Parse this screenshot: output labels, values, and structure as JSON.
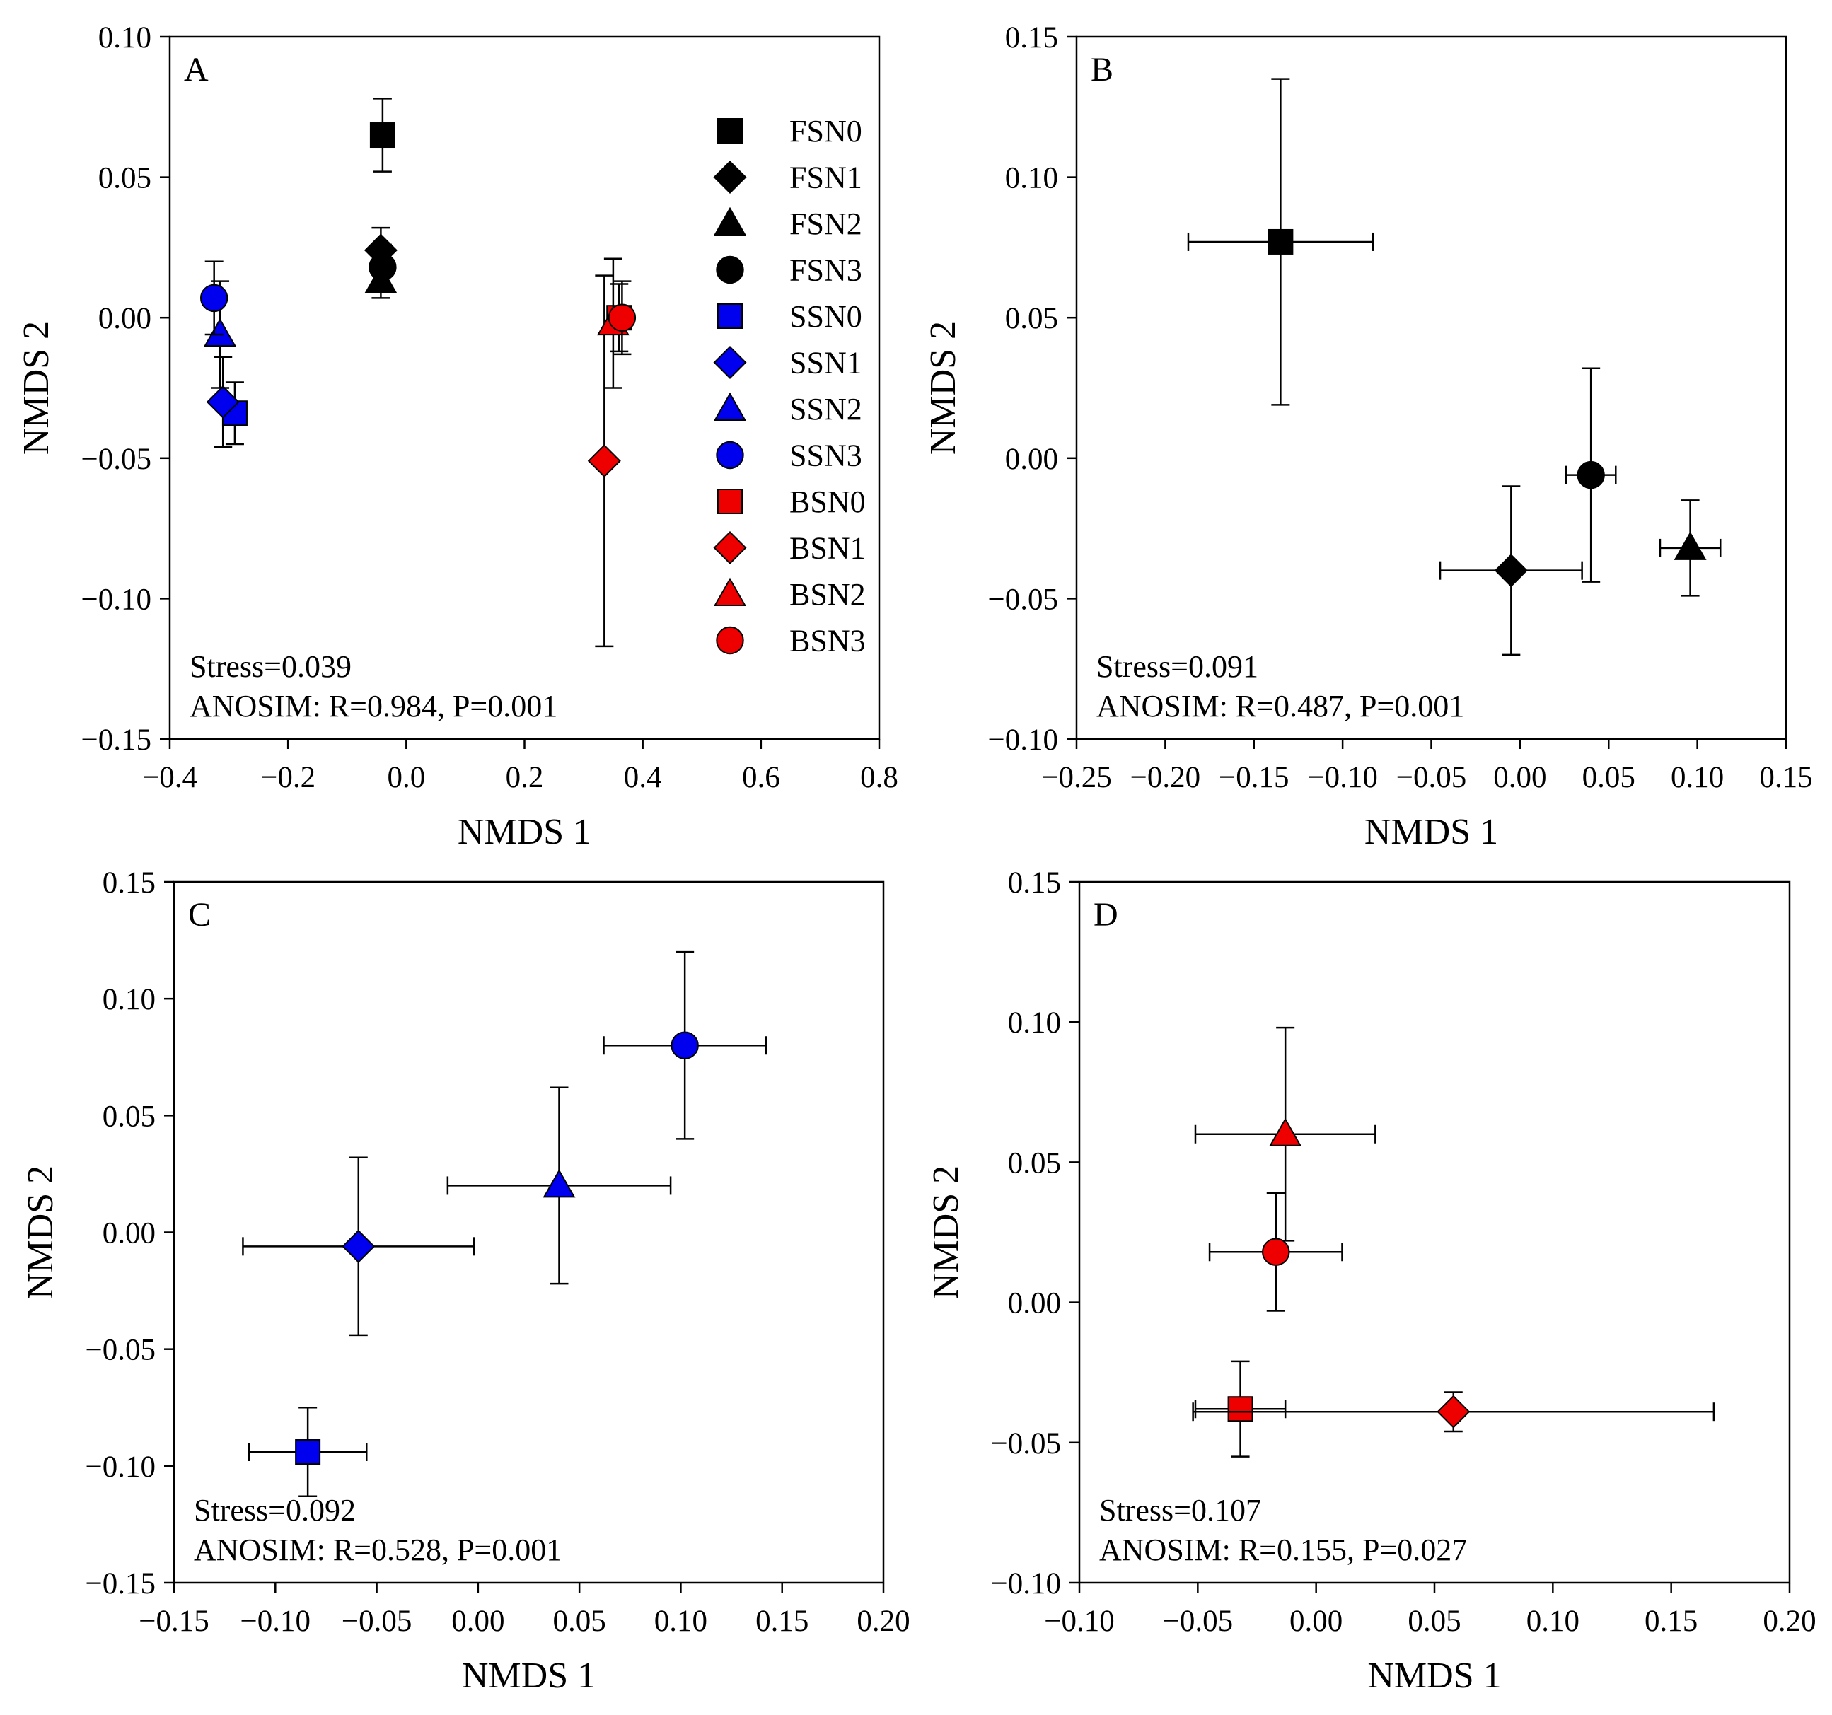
{
  "chart_data": [
    {
      "type": "scatter",
      "panel": "A",
      "xlabel": "NMDS 1",
      "ylabel": "NMDS 2",
      "xlim": [
        -0.4,
        0.8
      ],
      "ylim": [
        -0.15,
        0.1
      ],
      "xticks": [
        -0.4,
        -0.2,
        0.0,
        0.2,
        0.4,
        0.6,
        0.8
      ],
      "yticks": [
        -0.15,
        -0.1,
        -0.05,
        0.0,
        0.05,
        0.1
      ],
      "xtick_labels": [
        "−0.4",
        "−0.2",
        "0.0",
        "0.2",
        "0.4",
        "0.6",
        "0.8"
      ],
      "ytick_labels": [
        "−0.15",
        "−0.10",
        "−0.05",
        "0.00",
        "0.05",
        "0.10"
      ],
      "stress": "Stress=0.039",
      "anosim": "ANOSIM: R=0.984, P=0.001",
      "legend": [
        {
          "label": "FSN0",
          "shape": "square",
          "color": "#000000"
        },
        {
          "label": "FSN1",
          "shape": "diamond",
          "color": "#000000"
        },
        {
          "label": "FSN2",
          "shape": "triangle",
          "color": "#000000"
        },
        {
          "label": "FSN3",
          "shape": "circle",
          "color": "#000000"
        },
        {
          "label": "SSN0",
          "shape": "square",
          "color": "#0000ee"
        },
        {
          "label": "SSN1",
          "shape": "diamond",
          "color": "#0000ee"
        },
        {
          "label": "SSN2",
          "shape": "triangle",
          "color": "#0000ee"
        },
        {
          "label": "SSN3",
          "shape": "circle",
          "color": "#0000ee"
        },
        {
          "label": "BSN0",
          "shape": "square",
          "color": "#ee0000"
        },
        {
          "label": "BSN1",
          "shape": "diamond",
          "color": "#ee0000"
        },
        {
          "label": "BSN2",
          "shape": "triangle",
          "color": "#ee0000"
        },
        {
          "label": "BSN3",
          "shape": "circle",
          "color": "#ee0000"
        }
      ],
      "points": [
        {
          "name": "FSN0",
          "shape": "square",
          "color": "#000000",
          "x": -0.04,
          "y": 0.065,
          "xerr": 0,
          "yerr": 0.013
        },
        {
          "name": "FSN1",
          "shape": "diamond",
          "color": "#000000",
          "x": -0.043,
          "y": 0.024,
          "xerr": 0,
          "yerr": 0.008
        },
        {
          "name": "FSN2",
          "shape": "triangle",
          "color": "#000000",
          "x": -0.043,
          "y": 0.013,
          "xerr": 0,
          "yerr": 0.006
        },
        {
          "name": "FSN3",
          "shape": "circle",
          "color": "#000000",
          "x": -0.04,
          "y": 0.018,
          "xerr": 0,
          "yerr": 0.008
        },
        {
          "name": "SSN0",
          "shape": "square",
          "color": "#0000ee",
          "x": -0.29,
          "y": -0.034,
          "xerr": 0,
          "yerr": 0.011
        },
        {
          "name": "SSN1",
          "shape": "diamond",
          "color": "#0000ee",
          "x": -0.31,
          "y": -0.03,
          "xerr": 0,
          "yerr": 0.016
        },
        {
          "name": "SSN2",
          "shape": "triangle",
          "color": "#0000ee",
          "x": -0.315,
          "y": -0.006,
          "xerr": 0,
          "yerr": 0.019
        },
        {
          "name": "SSN3",
          "shape": "circle",
          "color": "#0000ee",
          "x": -0.325,
          "y": 0.007,
          "xerr": 0,
          "yerr": 0.013
        },
        {
          "name": "BSN0",
          "shape": "square",
          "color": "#ee0000",
          "x": 0.36,
          "y": 0.0,
          "xerr": 0,
          "yerr": 0.012
        },
        {
          "name": "BSN1",
          "shape": "diamond",
          "color": "#ee0000",
          "x": 0.335,
          "y": -0.051,
          "xerr": 0,
          "yerr": 0.066
        },
        {
          "name": "BSN2",
          "shape": "triangle",
          "color": "#ee0000",
          "x": 0.35,
          "y": -0.002,
          "xerr": 0,
          "yerr": 0.023
        },
        {
          "name": "BSN3",
          "shape": "circle",
          "color": "#ee0000",
          "x": 0.365,
          "y": 0.0,
          "xerr": 0,
          "yerr": 0.013
        }
      ]
    },
    {
      "type": "scatter",
      "panel": "B",
      "xlabel": "NMDS 1",
      "ylabel": "NMDS 2",
      "xlim": [
        -0.25,
        0.15
      ],
      "ylim": [
        -0.1,
        0.15
      ],
      "xticks": [
        -0.25,
        -0.2,
        -0.15,
        -0.1,
        -0.05,
        0.0,
        0.05,
        0.1,
        0.15
      ],
      "yticks": [
        -0.1,
        -0.05,
        0.0,
        0.05,
        0.1,
        0.15
      ],
      "xtick_labels": [
        "−0.25",
        "−0.20",
        "−0.15",
        "−0.10",
        "−0.05",
        "0.00",
        "0.05",
        "0.10",
        "0.15"
      ],
      "ytick_labels": [
        "−0.10",
        "−0.05",
        "0.00",
        "0.05",
        "0.10",
        "0.15"
      ],
      "stress": "Stress=0.091",
      "anosim": "ANOSIM: R=0.487, P=0.001",
      "points": [
        {
          "name": "FSN0",
          "shape": "square",
          "color": "#000000",
          "x": -0.135,
          "y": 0.077,
          "xerr": 0.052,
          "yerr": 0.058
        },
        {
          "name": "FSN1",
          "shape": "diamond",
          "color": "#000000",
          "x": -0.005,
          "y": -0.04,
          "xerr": 0.04,
          "yerr": 0.03
        },
        {
          "name": "FSN2",
          "shape": "triangle",
          "color": "#000000",
          "x": 0.096,
          "y": -0.032,
          "xerr": 0.017,
          "yerr": 0.017
        },
        {
          "name": "FSN3",
          "shape": "circle",
          "color": "#000000",
          "x": 0.04,
          "y": -0.006,
          "xerr": 0.014,
          "yerr": 0.038
        }
      ]
    },
    {
      "type": "scatter",
      "panel": "C",
      "xlabel": "NMDS 1",
      "ylabel": "NMDS 2",
      "xlim": [
        -0.15,
        0.2
      ],
      "ylim": [
        -0.15,
        0.15
      ],
      "xticks": [
        -0.15,
        -0.1,
        -0.05,
        0.0,
        0.05,
        0.1,
        0.15,
        0.2
      ],
      "yticks": [
        -0.15,
        -0.1,
        -0.05,
        0.0,
        0.05,
        0.1,
        0.15
      ],
      "xtick_labels": [
        "−0.15",
        "−0.10",
        "−0.05",
        "0.00",
        "0.05",
        "0.10",
        "0.15",
        "0.20"
      ],
      "ytick_labels": [
        "−0.15",
        "−0.10",
        "−0.05",
        "0.00",
        "0.05",
        "0.10",
        "0.15"
      ],
      "stress": "Stress=0.092",
      "anosim": "ANOSIM: R=0.528, P=0.001",
      "points": [
        {
          "name": "SSN0",
          "shape": "square",
          "color": "#0000ee",
          "x": -0.084,
          "y": -0.094,
          "xerr": 0.029,
          "yerr": 0.019
        },
        {
          "name": "SSN1",
          "shape": "diamond",
          "color": "#0000ee",
          "x": -0.059,
          "y": -0.006,
          "xerr": 0.057,
          "yerr": 0.038
        },
        {
          "name": "SSN2",
          "shape": "triangle",
          "color": "#0000ee",
          "x": 0.04,
          "y": 0.02,
          "xerr": 0.055,
          "yerr": 0.042
        },
        {
          "name": "SSN3",
          "shape": "circle",
          "color": "#0000ee",
          "x": 0.102,
          "y": 0.08,
          "xerr": 0.04,
          "yerr": 0.04
        }
      ]
    },
    {
      "type": "scatter",
      "panel": "D",
      "xlabel": "NMDS 1",
      "ylabel": "NMDS 2",
      "xlim": [
        -0.1,
        0.2
      ],
      "ylim": [
        -0.1,
        0.15
      ],
      "xticks": [
        -0.1,
        -0.05,
        0.0,
        0.05,
        0.1,
        0.15,
        0.2
      ],
      "yticks": [
        -0.1,
        -0.05,
        0.0,
        0.05,
        0.1,
        0.15
      ],
      "xtick_labels": [
        "−0.10",
        "−0.05",
        "0.00",
        "0.05",
        "0.10",
        "0.15",
        "0.20"
      ],
      "ytick_labels": [
        "−0.10",
        "−0.05",
        "0.00",
        "0.05",
        "0.10",
        "0.15"
      ],
      "stress": "Stress=0.107",
      "anosim": "ANOSIM: R=0.155, P=0.027",
      "points": [
        {
          "name": "BSN0",
          "shape": "square",
          "color": "#ee0000",
          "x": -0.032,
          "y": -0.038,
          "xerr": 0.019,
          "yerr": 0.017
        },
        {
          "name": "BSN1",
          "shape": "diamond",
          "color": "#ee0000",
          "x": 0.058,
          "y": -0.039,
          "xerr": 0.11,
          "yerr": 0.007
        },
        {
          "name": "BSN2",
          "shape": "triangle",
          "color": "#ee0000",
          "x": -0.013,
          "y": 0.06,
          "xerr": 0.038,
          "yerr": 0.038
        },
        {
          "name": "BSN3",
          "shape": "circle",
          "color": "#ee0000",
          "x": -0.017,
          "y": 0.018,
          "xerr": 0.028,
          "yerr": 0.021
        }
      ]
    }
  ]
}
